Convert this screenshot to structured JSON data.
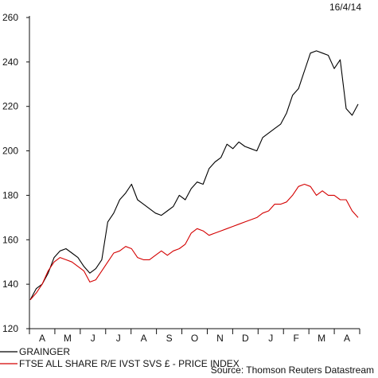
{
  "chart_data": {
    "type": "line",
    "date": "16/4/14",
    "source": "Source: Thomson Reuters Datastream",
    "x_ticks": [
      "A",
      "M",
      "J",
      "J",
      "A",
      "S",
      "O",
      "N",
      "D",
      "J",
      "F",
      "M",
      "A"
    ],
    "ylim": [
      120,
      260
    ],
    "y_ticks": [
      120,
      140,
      160,
      180,
      200,
      220,
      240,
      260
    ],
    "grid": false,
    "legend_position": "bottom-left",
    "series": [
      {
        "name": "GRAINGER",
        "color": "#000000",
        "values": [
          133,
          138,
          140,
          145,
          152,
          155,
          156,
          154,
          152,
          148,
          145,
          147,
          151,
          168,
          172,
          178,
          181,
          185,
          178,
          176,
          174,
          172,
          171,
          173,
          175,
          180,
          178,
          183,
          186,
          185,
          192,
          195,
          197,
          203,
          201,
          204,
          202,
          201,
          200,
          206,
          208,
          210,
          212,
          217,
          225,
          228,
          236,
          244,
          245,
          244,
          243,
          237,
          241,
          219,
          216,
          221
        ]
      },
      {
        "name": "FTSE ALL SHARE R/E IVST SVS £ - PRICE INDEX",
        "color": "#d40000",
        "values": [
          133,
          136,
          140,
          146,
          150,
          152,
          151,
          150,
          148,
          146,
          141,
          142,
          146,
          150,
          154,
          155,
          157,
          156,
          152,
          151,
          151,
          153,
          155,
          153,
          155,
          156,
          158,
          163,
          165,
          164,
          162,
          163,
          164,
          165,
          166,
          167,
          168,
          169,
          170,
          172,
          173,
          176,
          176,
          177,
          180,
          184,
          185,
          184,
          180,
          182,
          180,
          180,
          178,
          178,
          173,
          170
        ]
      }
    ]
  }
}
